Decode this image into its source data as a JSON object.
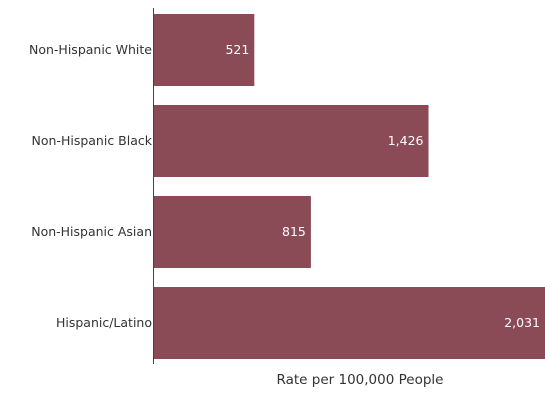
{
  "chart_data": {
    "type": "bar",
    "orientation": "horizontal",
    "categories": [
      "Non-Hispanic White",
      "Non-Hispanic Black",
      "Non-Hispanic Asian",
      "Hispanic/Latino"
    ],
    "values": [
      521,
      1426,
      815,
      2031
    ],
    "value_labels": [
      "521",
      "1,426",
      "815",
      "2,031"
    ],
    "xlabel": "Rate per 100,000 People",
    "ylabel": "",
    "xlim": [
      0,
      2031
    ],
    "grid": false,
    "legend": "none",
    "bar_color": "#8a4a56"
  }
}
